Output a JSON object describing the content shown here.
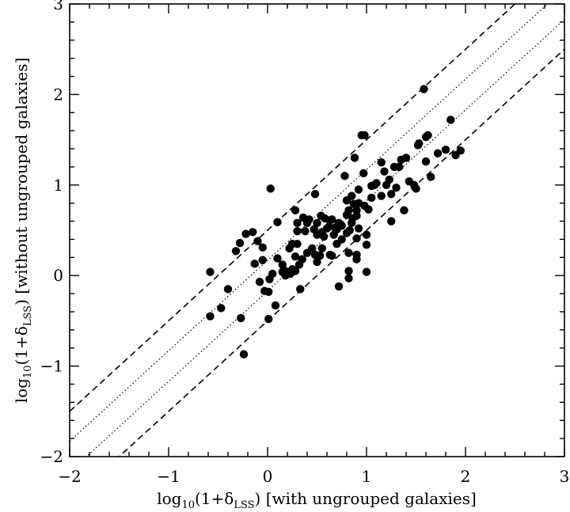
{
  "chart_data": {
    "type": "scatter",
    "xlabel": {
      "pre": "log",
      "sub1": "10",
      "mid": "(1+δ",
      "sub2": "LSS",
      "post": ") [with ungrouped galaxies]"
    },
    "ylabel": {
      "pre": "log",
      "sub1": "10",
      "mid": "(1+δ",
      "sub2": "LSS",
      "post": ") [without ungrouped galaxies]"
    },
    "xlim": [
      -2,
      3
    ],
    "ylim": [
      -2,
      3
    ],
    "xticks": [
      {
        "value": -2,
        "label": "−2"
      },
      {
        "value": -1,
        "label": "−1"
      },
      {
        "value": 0,
        "label": "0"
      },
      {
        "value": 1,
        "label": "1"
      },
      {
        "value": 2,
        "label": "2"
      },
      {
        "value": 3,
        "label": "3"
      }
    ],
    "yticks": [
      {
        "value": -2,
        "label": "−2"
      },
      {
        "value": -1,
        "label": "−1"
      },
      {
        "value": 0,
        "label": "0"
      },
      {
        "value": 1,
        "label": "1"
      },
      {
        "value": 2,
        "label": "2"
      },
      {
        "value": 3,
        "label": "3"
      }
    ],
    "grid": false,
    "reference_lines": [
      {
        "intercept": 0.5,
        "slope": 1,
        "style": "dashed"
      },
      {
        "intercept": 0.17,
        "slope": 1,
        "style": "dotted"
      },
      {
        "intercept": -0.17,
        "slope": 1,
        "style": "dotted"
      },
      {
        "intercept": -0.5,
        "slope": 1,
        "style": "dashed"
      }
    ],
    "points": [
      [
        -0.58,
        0.04
      ],
      [
        -0.58,
        -0.45
      ],
      [
        -0.47,
        -0.36
      ],
      [
        -0.4,
        -0.15
      ],
      [
        -0.32,
        0.27
      ],
      [
        -0.28,
        0.36
      ],
      [
        -0.22,
        0.46
      ],
      [
        -0.27,
        -0.47
      ],
      [
        -0.24,
        -0.87
      ],
      [
        -0.15,
        0.48
      ],
      [
        -0.13,
        0.13
      ],
      [
        -0.1,
        0.38
      ],
      [
        -0.08,
        -0.07
      ],
      [
        -0.05,
        0.17
      ],
      [
        -0.05,
        0.31
      ],
      [
        -0.03,
        -0.17
      ],
      [
        0.01,
        -0.18
      ],
      [
        0.03,
        0.96
      ],
      [
        0.02,
        -0.04
      ],
      [
        0.05,
        0.02
      ],
      [
        0.08,
        -0.33
      ],
      [
        0.01,
        -0.48
      ],
      [
        0.1,
        0.59
      ],
      [
        0.1,
        0.19
      ],
      [
        0.15,
        0.04
      ],
      [
        0.15,
        0.12
      ],
      [
        0.18,
        0.0
      ],
      [
        0.18,
        0.05
      ],
      [
        0.22,
        0.3
      ],
      [
        0.23,
        0.02
      ],
      [
        0.25,
        0.07
      ],
      [
        0.25,
        0.35
      ],
      [
        0.28,
        0.72
      ],
      [
        0.28,
        0.05
      ],
      [
        0.28,
        0.21
      ],
      [
        0.3,
        0.35
      ],
      [
        0.3,
        0.58
      ],
      [
        0.32,
        0.12
      ],
      [
        0.35,
        0.18
      ],
      [
        0.33,
        -0.15
      ],
      [
        0.36,
        0.64
      ],
      [
        0.38,
        0.49
      ],
      [
        0.4,
        0.58
      ],
      [
        0.42,
        0.62
      ],
      [
        0.45,
        0.3
      ],
      [
        0.47,
        0.51
      ],
      [
        0.48,
        0.9
      ],
      [
        0.48,
        0.23
      ],
      [
        0.5,
        0.15
      ],
      [
        0.5,
        0.45
      ],
      [
        0.5,
        0.58
      ],
      [
        0.53,
        0.22
      ],
      [
        0.54,
        0.66
      ],
      [
        0.55,
        0.48
      ],
      [
        0.57,
        0.43
      ],
      [
        0.58,
        0.63
      ],
      [
        0.6,
        0.52
      ],
      [
        0.62,
        0.54
      ],
      [
        0.63,
        0.61
      ],
      [
        0.63,
        0.23
      ],
      [
        0.65,
        0.62
      ],
      [
        0.67,
        0.45
      ],
      [
        0.68,
        0.53
      ],
      [
        0.7,
        0.35
      ],
      [
        0.7,
        0.51
      ],
      [
        0.72,
        0.58
      ],
      [
        0.72,
        -0.12
      ],
      [
        0.75,
        0.55
      ],
      [
        0.75,
        0.4
      ],
      [
        0.78,
        1.1
      ],
      [
        0.8,
        0.47
      ],
      [
        0.8,
        0.67
      ],
      [
        0.8,
        0.83
      ],
      [
        0.82,
        0.05
      ],
      [
        0.82,
        0.25
      ],
      [
        0.82,
        -0.03
      ],
      [
        0.82,
        0.72
      ],
      [
        0.83,
        0.5
      ],
      [
        0.85,
        0.58
      ],
      [
        0.85,
        0.88
      ],
      [
        0.86,
        0.63
      ],
      [
        0.87,
        0.79
      ],
      [
        0.88,
        1.3
      ],
      [
        0.9,
        0.66
      ],
      [
        0.9,
        0.72
      ],
      [
        0.9,
        0.41
      ],
      [
        0.9,
        0.18
      ],
      [
        0.9,
        0.23
      ],
      [
        0.92,
        0.52
      ],
      [
        0.92,
        0.8
      ],
      [
        0.92,
        0.95
      ],
      [
        0.95,
        1.55
      ],
      [
        0.97,
        1.13
      ],
      [
        0.98,
        0.77
      ],
      [
        1.0,
        0.34
      ],
      [
        1.0,
        0.45
      ],
      [
        1.0,
        0.04
      ],
      [
        1.02,
        0.73
      ],
      [
        1.05,
        0.99
      ],
      [
        1.05,
        0.86
      ],
      [
        1.08,
        1.0
      ],
      [
        1.1,
        1.02
      ],
      [
        1.15,
        1.25
      ],
      [
        1.15,
        0.88
      ],
      [
        1.18,
        1.15
      ],
      [
        1.2,
        1.0
      ],
      [
        1.23,
        1.06
      ],
      [
        1.25,
        0.6
      ],
      [
        1.25,
        0.9
      ],
      [
        1.28,
        1.2
      ],
      [
        1.3,
        0.97
      ],
      [
        1.33,
        1.2
      ],
      [
        1.35,
        1.28
      ],
      [
        1.38,
        0.72
      ],
      [
        1.4,
        1.3
      ],
      [
        1.43,
        1.04
      ],
      [
        1.48,
        1.0
      ],
      [
        1.5,
        0.96
      ],
      [
        1.52,
        1.44
      ],
      [
        1.53,
        1.46
      ],
      [
        1.58,
        2.06
      ],
      [
        1.6,
        1.53
      ],
      [
        1.6,
        1.26
      ],
      [
        1.62,
        1.55
      ],
      [
        1.65,
        1.09
      ],
      [
        1.72,
        1.35
      ],
      [
        1.8,
        1.39
      ],
      [
        1.85,
        1.72
      ],
      [
        1.9,
        1.33
      ],
      [
        1.95,
        1.38
      ],
      [
        0.98,
        1.55
      ],
      [
        0.65,
        0.22
      ],
      [
        0.55,
        0.3
      ],
      [
        0.4,
        0.25
      ],
      [
        0.3,
        0.49
      ]
    ]
  }
}
